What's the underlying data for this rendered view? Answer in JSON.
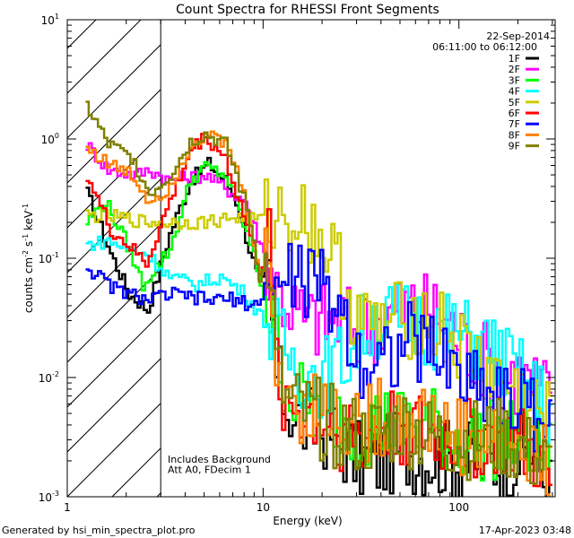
{
  "chart_data": {
    "type": "line",
    "title": "Count Spectra for RHESSI Front Segments",
    "xlabel": "Energy (keV)",
    "ylabel_parts": {
      "pre": "counts cm",
      "exp1": "-2",
      "mid": " s",
      "exp2": "-1",
      "post": " keV",
      "exp3": "-1"
    },
    "xscale": "log",
    "yscale": "log",
    "xlim": [
      1,
      310
    ],
    "ylim": [
      0.001,
      10
    ],
    "x_ticks": [
      {
        "value": 1,
        "label": "1"
      },
      {
        "value": 10,
        "label": "10"
      },
      {
        "value": 100,
        "label": "100"
      }
    ],
    "y_ticks": [
      {
        "value": 10,
        "base": "10",
        "exp": "1"
      },
      {
        "value": 1,
        "base": "10",
        "exp": "0"
      },
      {
        "value": 0.1,
        "base": "10",
        "exp": "-1"
      },
      {
        "value": 0.01,
        "base": "10",
        "exp": "-2"
      },
      {
        "value": 0.001,
        "base": "10",
        "exp": "-3"
      }
    ],
    "hatched_region": {
      "x_from": 1,
      "x_to": 3
    },
    "date_label": "22-Sep-2014",
    "time_label": "06:11:00 to 06:12:00",
    "annotations": [
      "Includes Background",
      "Att A0, FDecim 1"
    ],
    "legend_position": "top-right",
    "series": [
      {
        "name": "1F",
        "color": "#000000",
        "points": [
          [
            1.24,
            0.35
          ],
          [
            1.65,
            0.11
          ],
          [
            2.05,
            0.05
          ],
          [
            2.55,
            0.037
          ],
          [
            3.3,
            0.16
          ],
          [
            4.2,
            0.45
          ],
          [
            5.2,
            0.62
          ],
          [
            6.3,
            0.45
          ],
          [
            7.2,
            0.3
          ],
          [
            8.4,
            0.12
          ],
          [
            9.5,
            0.06
          ],
          [
            10.5,
            0.07
          ],
          [
            11.5,
            0.01
          ],
          [
            13,
            0.006
          ],
          [
            16,
            0.004
          ],
          [
            22,
            0.0035
          ],
          [
            30,
            0.002
          ],
          [
            38,
            0.002
          ],
          [
            50,
            0.0025
          ],
          [
            70,
            0.0022
          ],
          [
            100,
            0.002
          ],
          [
            150,
            0.002
          ],
          [
            230,
            0.0025
          ],
          [
            300,
            0.001
          ]
        ]
      },
      {
        "name": "2F",
        "color": "#ff00ff",
        "points": [
          [
            1.24,
            0.9
          ],
          [
            1.6,
            0.55
          ],
          [
            2.2,
            0.5
          ],
          [
            2.6,
            0.55
          ],
          [
            3.3,
            0.45
          ],
          [
            5,
            0.5
          ],
          [
            8,
            0.3
          ],
          [
            10,
            0.11
          ],
          [
            12,
            0.05
          ],
          [
            16,
            0.03
          ],
          [
            24,
            0.03
          ],
          [
            30,
            0.025
          ],
          [
            40,
            0.03
          ],
          [
            55,
            0.04
          ],
          [
            80,
            0.033
          ],
          [
            110,
            0.018
          ],
          [
            150,
            0.012
          ],
          [
            200,
            0.01
          ],
          [
            260,
            0.008
          ],
          [
            300,
            0.006
          ]
        ]
      },
      {
        "name": "3F",
        "color": "#00ff00",
        "points": [
          [
            1.24,
            0.2
          ],
          [
            1.55,
            0.3
          ],
          [
            2,
            0.13
          ],
          [
            2.4,
            0.06
          ],
          [
            3.3,
            0.12
          ],
          [
            4.2,
            0.45
          ],
          [
            5,
            0.58
          ],
          [
            6.3,
            0.5
          ],
          [
            7.2,
            0.3
          ],
          [
            8.5,
            0.13
          ],
          [
            10,
            0.05
          ],
          [
            11.5,
            0.02
          ],
          [
            13,
            0.008
          ],
          [
            16,
            0.006
          ],
          [
            22,
            0.005
          ],
          [
            30,
            0.004
          ],
          [
            45,
            0.004
          ],
          [
            70,
            0.004
          ],
          [
            100,
            0.003
          ],
          [
            150,
            0.003
          ],
          [
            220,
            0.003
          ],
          [
            300,
            0.002
          ]
        ]
      },
      {
        "name": "4F",
        "color": "#00ffff",
        "points": [
          [
            1.24,
            0.13
          ],
          [
            1.6,
            0.14
          ],
          [
            2,
            0.12
          ],
          [
            2.5,
            0.11
          ],
          [
            3.3,
            0.07
          ],
          [
            4.5,
            0.06
          ],
          [
            6,
            0.07
          ],
          [
            8,
            0.05
          ],
          [
            10,
            0.03
          ],
          [
            12,
            0.02
          ],
          [
            15,
            0.012
          ],
          [
            20,
            0.01
          ],
          [
            26,
            0.015
          ],
          [
            35,
            0.03
          ],
          [
            55,
            0.03
          ],
          [
            80,
            0.025
          ],
          [
            120,
            0.02
          ],
          [
            160,
            0.015
          ],
          [
            230,
            0.008
          ],
          [
            300,
            0.005
          ]
        ]
      },
      {
        "name": "5F",
        "color": "#cccc00",
        "points": [
          [
            1.24,
            0.23
          ],
          [
            1.8,
            0.22
          ],
          [
            2.5,
            0.2
          ],
          [
            3.3,
            0.2
          ],
          [
            5,
            0.2
          ],
          [
            7,
            0.22
          ],
          [
            9,
            0.21
          ],
          [
            11.5,
            0.23
          ],
          [
            14,
            0.24
          ],
          [
            17,
            0.2
          ],
          [
            20,
            0.14
          ],
          [
            24,
            0.08
          ],
          [
            28,
            0.04
          ],
          [
            34,
            0.025
          ],
          [
            45,
            0.028
          ],
          [
            60,
            0.033
          ],
          [
            80,
            0.025
          ],
          [
            110,
            0.015
          ],
          [
            150,
            0.01
          ],
          [
            200,
            0.007
          ],
          [
            260,
            0.005
          ],
          [
            300,
            0.004
          ]
        ]
      },
      {
        "name": "6F",
        "color": "#ff0000",
        "points": [
          [
            1.24,
            0.5
          ],
          [
            1.65,
            0.17
          ],
          [
            2,
            0.13
          ],
          [
            2.5,
            0.09
          ],
          [
            3.3,
            0.3
          ],
          [
            4.2,
            0.8
          ],
          [
            5,
            1.05
          ],
          [
            6.3,
            0.7
          ],
          [
            7.2,
            0.35
          ],
          [
            8.5,
            0.15
          ],
          [
            9.5,
            0.08
          ],
          [
            10.5,
            0.12
          ],
          [
            11.5,
            0.012
          ],
          [
            13,
            0.006
          ],
          [
            16,
            0.005
          ],
          [
            22,
            0.004
          ],
          [
            32,
            0.003
          ],
          [
            50,
            0.004
          ],
          [
            75,
            0.003
          ],
          [
            110,
            0.003
          ],
          [
            170,
            0.003
          ],
          [
            250,
            0.002
          ],
          [
            300,
            0.001
          ]
        ]
      },
      {
        "name": "7F",
        "color": "#0000ff",
        "points": [
          [
            1.24,
            0.085
          ],
          [
            1.6,
            0.06
          ],
          [
            2,
            0.05
          ],
          [
            2.6,
            0.045
          ],
          [
            3.3,
            0.05
          ],
          [
            5,
            0.045
          ],
          [
            7,
            0.045
          ],
          [
            9,
            0.04
          ],
          [
            10.5,
            0.06
          ],
          [
            12,
            0.05
          ],
          [
            14,
            0.075
          ],
          [
            17,
            0.065
          ],
          [
            21,
            0.05
          ],
          [
            25,
            0.035
          ],
          [
            30,
            0.015
          ],
          [
            40,
            0.015
          ],
          [
            55,
            0.02
          ],
          [
            80,
            0.015
          ],
          [
            110,
            0.01
          ],
          [
            150,
            0.008
          ],
          [
            200,
            0.006
          ],
          [
            260,
            0.005
          ],
          [
            300,
            0.003
          ]
        ]
      },
      {
        "name": "8F",
        "color": "#ff8000",
        "points": [
          [
            1.24,
            0.85
          ],
          [
            1.65,
            0.6
          ],
          [
            2.1,
            0.5
          ],
          [
            2.6,
            0.3
          ],
          [
            3.3,
            0.4
          ],
          [
            4.2,
            0.9
          ],
          [
            5,
            1.1
          ],
          [
            6.3,
            0.9
          ],
          [
            7.2,
            0.55
          ],
          [
            8.5,
            0.2
          ],
          [
            9.5,
            0.07
          ],
          [
            10.5,
            0.1
          ],
          [
            11.5,
            0.015
          ],
          [
            13,
            0.007
          ],
          [
            16,
            0.006
          ],
          [
            22,
            0.005
          ],
          [
            32,
            0.004
          ],
          [
            50,
            0.005
          ],
          [
            75,
            0.004
          ],
          [
            110,
            0.003
          ],
          [
            170,
            0.003
          ],
          [
            250,
            0.002
          ],
          [
            300,
            0.002
          ]
        ]
      },
      {
        "name": "9F",
        "color": "#808000",
        "points": [
          [
            1.24,
            1.9
          ],
          [
            1.6,
            0.9
          ],
          [
            2.1,
            0.7
          ],
          [
            2.6,
            0.35
          ],
          [
            3.3,
            0.5
          ],
          [
            4.2,
            0.95
          ],
          [
            5,
            1.1
          ],
          [
            6.3,
            0.9
          ],
          [
            7.2,
            0.5
          ],
          [
            8.5,
            0.2
          ],
          [
            9.5,
            0.07
          ],
          [
            10.5,
            0.09
          ],
          [
            11.5,
            0.012
          ],
          [
            13,
            0.006
          ],
          [
            16,
            0.005
          ],
          [
            22,
            0.004
          ],
          [
            32,
            0.003
          ],
          [
            50,
            0.004
          ],
          [
            75,
            0.003
          ],
          [
            110,
            0.003
          ],
          [
            170,
            0.003
          ],
          [
            250,
            0.002
          ],
          [
            300,
            0.0015
          ]
        ]
      }
    ]
  },
  "footer": {
    "generated_by": "Generated by hsi_min_spectra_plot.pro",
    "timestamp": "17-Apr-2023 03:48"
  }
}
